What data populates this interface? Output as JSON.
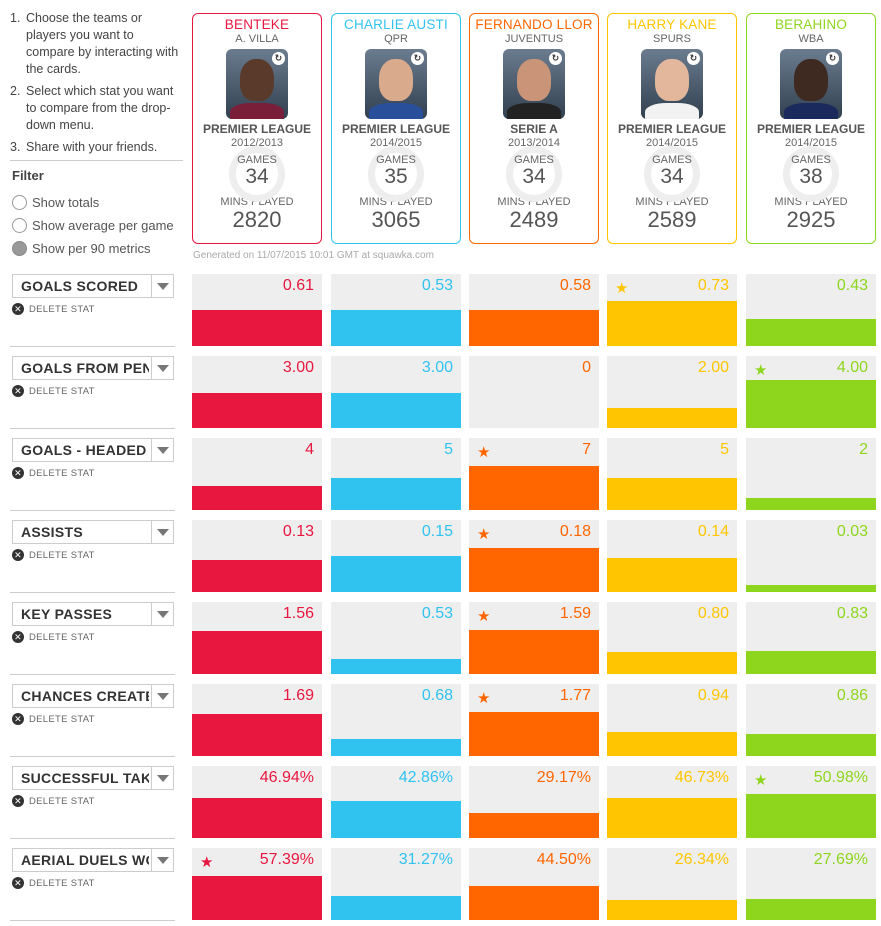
{
  "instructions": [
    {
      "num": "1.",
      "text": "Choose the teams or players you want to compare by interacting with the cards."
    },
    {
      "num": "2.",
      "text": "Select which stat you want to compare from the drop-down menu."
    },
    {
      "num": "3.",
      "text": "Share with your friends."
    }
  ],
  "filter": {
    "title": "Filter",
    "options": [
      {
        "label": "Show totals",
        "checked": false
      },
      {
        "label": "Show average per game",
        "checked": false
      },
      {
        "label": "Show per 90 metrics",
        "checked": true
      }
    ]
  },
  "players": [
    {
      "name": "BENTEKE",
      "team": "A. Villa",
      "league": "PREMIER LEAGUE",
      "season": "2012/2013",
      "games_label": "GAMES",
      "games": "34",
      "mins_label": "MINS PLAYED",
      "mins": "2820",
      "color": "#e8173f",
      "skin": "#5a3a2a",
      "shirt": "#7a1f3a"
    },
    {
      "name": "CHARLIE AUSTI",
      "team": "QPR",
      "league": "PREMIER LEAGUE",
      "season": "2014/2015",
      "games_label": "GAMES",
      "games": "35",
      "mins_label": "MINS PLAYED",
      "mins": "3065",
      "color": "#31c3f0",
      "skin": "#d9ab8c",
      "shirt": "#2a4f9a"
    },
    {
      "name": "FERNANDO LLOR",
      "team": "JUVENTUS",
      "league": "SERIE A",
      "season": "2013/2014",
      "games_label": "GAMES",
      "games": "34",
      "mins_label": "MINS PLAYED",
      "mins": "2489",
      "color": "#ff6600",
      "skin": "#c99477",
      "shirt": "#222222"
    },
    {
      "name": "HARRY KANE",
      "team": "SPURS",
      "league": "PREMIER LEAGUE",
      "season": "2014/2015",
      "games_label": "GAMES",
      "games": "34",
      "mins_label": "MINS PLAYED",
      "mins": "2589",
      "color": "#ffc600",
      "skin": "#e3b79c",
      "shirt": "#f2f2f2"
    },
    {
      "name": "BERAHINO",
      "team": "WBA",
      "league": "PREMIER LEAGUE",
      "season": "2014/2015",
      "games_label": "GAMES",
      "games": "38",
      "mins_label": "MINS PLAYED",
      "mins": "2925",
      "color": "#8ed61e",
      "skin": "#3e2a20",
      "shirt": "#1b2a5c"
    }
  ],
  "generated": "Generated on 11/07/2015 10:01 GMT at squawka.com",
  "delete_label": "DELETE STAT",
  "stats": [
    {
      "label": "GOALS SCORED",
      "values": [
        "0.61",
        "0.53",
        "0.58",
        "0.73",
        "0.43"
      ],
      "fills": [
        0.5,
        0.5,
        0.5,
        0.62,
        0.37
      ],
      "star": 3
    },
    {
      "label": "GOALS FROM PENALTIES",
      "values": [
        "3.00",
        "3.00",
        "0",
        "2.00",
        "4.00"
      ],
      "fills": [
        0.49,
        0.49,
        0,
        0.28,
        0.66
      ],
      "star": 4
    },
    {
      "label": "GOALS - HEADED",
      "values": [
        "4",
        "5",
        "7",
        "5",
        "2"
      ],
      "fills": [
        0.34,
        0.44,
        0.61,
        0.44,
        0.16
      ],
      "star": 2
    },
    {
      "label": "ASSISTS",
      "values": [
        "0.13",
        "0.15",
        "0.18",
        "0.14",
        "0.03"
      ],
      "fills": [
        0.44,
        0.5,
        0.61,
        0.47,
        0.1
      ],
      "star": 2
    },
    {
      "label": "KEY PASSES",
      "values": [
        "1.56",
        "0.53",
        "1.59",
        "0.80",
        "0.83"
      ],
      "fills": [
        0.6,
        0.21,
        0.61,
        0.31,
        0.32
      ],
      "star": 2
    },
    {
      "label": "CHANCES CREATED",
      "values": [
        "1.69",
        "0.68",
        "1.77",
        "0.94",
        "0.86"
      ],
      "fills": [
        0.59,
        0.24,
        0.61,
        0.33,
        0.3
      ],
      "star": 2
    },
    {
      "label": "SUCCESSFUL TAKE-ONS",
      "values": [
        "46.94%",
        "42.86%",
        "29.17%",
        "46.73%",
        "50.98%"
      ],
      "fills": [
        0.56,
        0.51,
        0.35,
        0.56,
        0.61
      ],
      "star": 4
    },
    {
      "label": "AERIAL DUELS WON",
      "values": [
        "57.39%",
        "31.27%",
        "44.50%",
        "26.34%",
        "27.69%"
      ],
      "fills": [
        0.61,
        0.33,
        0.47,
        0.28,
        0.29
      ],
      "star": 0
    }
  ]
}
